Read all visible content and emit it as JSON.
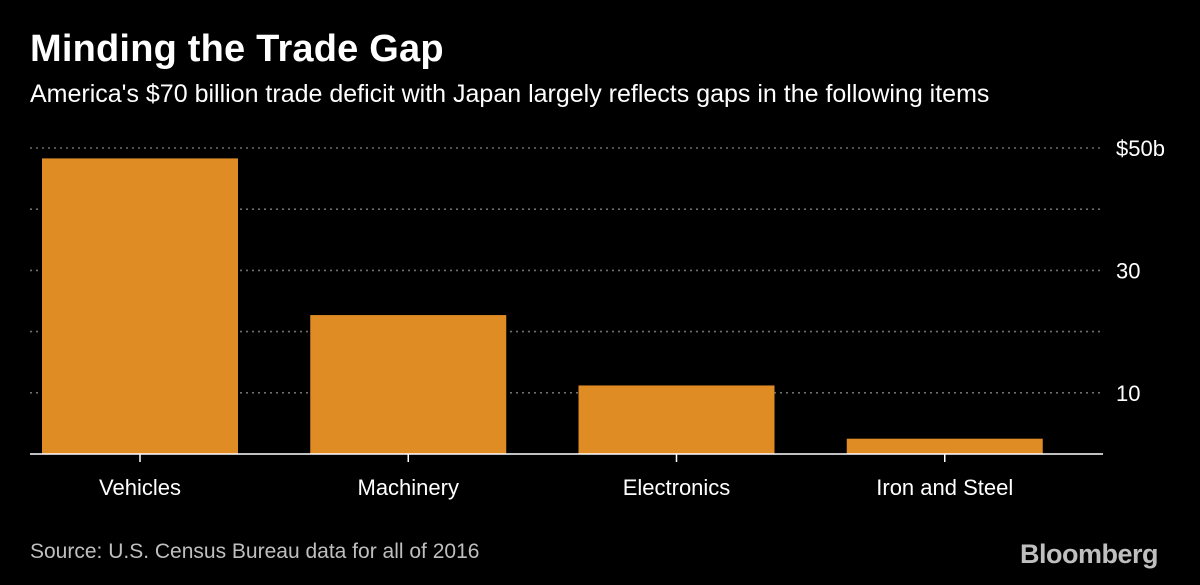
{
  "header": {
    "title": "Minding the Trade Gap",
    "subtitle": "America's $70 billion trade deficit with Japan largely reflects gaps in the following items"
  },
  "footer": {
    "source": "Source: U.S. Census Bureau data for all of 2016",
    "brand": "Bloomberg"
  },
  "colors": {
    "background": "#000000",
    "bar": "#e08c24",
    "text": "#ffffff",
    "muted": "#bfbfbf",
    "grid": "#6e6e6e"
  },
  "chart_data": {
    "type": "bar",
    "title": "Minding the Trade Gap",
    "subtitle": "America's $70 billion trade deficit with Japan largely reflects gaps in the following items",
    "categories": [
      "Vehicles",
      "Machinery",
      "Electronics",
      "Iron and Steel"
    ],
    "values": [
      48.3,
      22.7,
      11.2,
      2.5
    ],
    "unit": "billion USD",
    "xlabel": "",
    "ylabel": "",
    "ylim": [
      0,
      50
    ],
    "yticks": [
      0,
      10,
      20,
      30,
      40,
      50
    ],
    "ytick_labels": [
      {
        "value": 10,
        "label": "10"
      },
      {
        "value": 30,
        "label": "30"
      },
      {
        "value": 50,
        "label": "$50b"
      }
    ],
    "grid": true,
    "grid_style": "dotted",
    "y_axis_position": "right"
  }
}
